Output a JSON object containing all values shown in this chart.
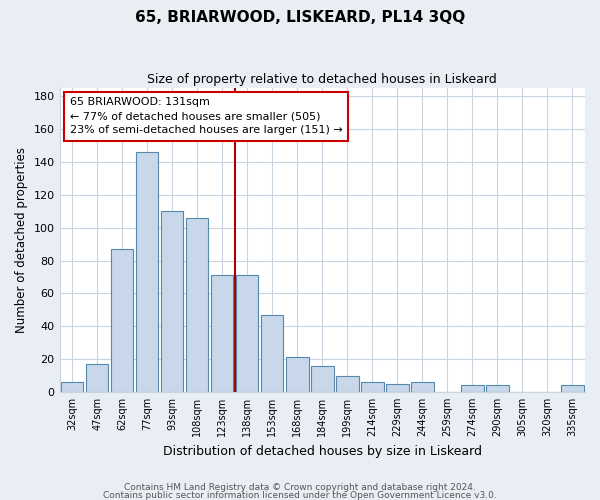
{
  "title": "65, BRIARWOOD, LISKEARD, PL14 3QQ",
  "subtitle": "Size of property relative to detached houses in Liskeard",
  "xlabel": "Distribution of detached houses by size in Liskeard",
  "ylabel": "Number of detached properties",
  "bar_color": "#c8d8ea",
  "bar_edge_color": "#5588aa",
  "categories": [
    "32sqm",
    "47sqm",
    "62sqm",
    "77sqm",
    "93sqm",
    "108sqm",
    "123sqm",
    "138sqm",
    "153sqm",
    "168sqm",
    "184sqm",
    "199sqm",
    "214sqm",
    "229sqm",
    "244sqm",
    "259sqm",
    "274sqm",
    "290sqm",
    "305sqm",
    "320sqm",
    "335sqm"
  ],
  "values": [
    6,
    17,
    87,
    146,
    110,
    106,
    71,
    71,
    47,
    21,
    16,
    10,
    6,
    5,
    6,
    0,
    4,
    4,
    0,
    0,
    4
  ],
  "vline_color": "#aa0000",
  "annotation_title": "65 BRIARWOOD: 131sqm",
  "annotation_line1": "← 77% of detached houses are smaller (505)",
  "annotation_line2": "23% of semi-detached houses are larger (151) →",
  "annotation_box_color": "#ffffff",
  "annotation_box_edge": "#cc0000",
  "ylim": [
    0,
    185
  ],
  "yticks": [
    0,
    20,
    40,
    60,
    80,
    100,
    120,
    140,
    160,
    180
  ],
  "footer1": "Contains HM Land Registry data © Crown copyright and database right 2024.",
  "footer2": "Contains public sector information licensed under the Open Government Licence v3.0.",
  "plot_bg": "#ffffff",
  "fig_bg": "#e8eef4",
  "grid_color": "#c8d4e0"
}
